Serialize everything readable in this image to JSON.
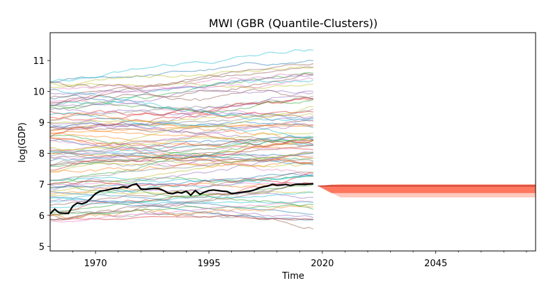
{
  "chart_data": {
    "type": "line",
    "title": "MWI (GBR (Quantile-Clusters))",
    "xlabel": "Time",
    "ylabel": "log(GDP)",
    "xlim": [
      1960,
      2067
    ],
    "ylim": [
      4.85,
      11.9
    ],
    "x_ticks": [
      {
        "value": 1970,
        "label": "1970"
      },
      {
        "value": 1995,
        "label": "1995"
      },
      {
        "value": 2020,
        "label": "2020"
      },
      {
        "value": 2045,
        "label": "2045"
      }
    ],
    "y_ticks": [
      {
        "value": 5,
        "label": "5"
      },
      {
        "value": 6,
        "label": "6"
      },
      {
        "value": 7,
        "label": "7"
      },
      {
        "value": 8,
        "label": "8"
      },
      {
        "value": 9,
        "label": "9"
      },
      {
        "value": 10,
        "label": "10"
      },
      {
        "value": 11,
        "label": "11"
      }
    ],
    "grid": false,
    "legend": "none",
    "background_series": {
      "count": 90,
      "x_start": 1960,
      "x_end": 2018,
      "description_note": "",
      "alpha": 0.5,
      "palette": [
        "#1f77b4",
        "#ff7f0e",
        "#2ca02c",
        "#d62728",
        "#9467bd",
        "#8c564b",
        "#e377c2",
        "#7f7f7f",
        "#bcbd22",
        "#17becf"
      ]
    },
    "highlight_series": {
      "color": "#000000",
      "x": [
        1960,
        1961,
        1962,
        1963,
        1964,
        1965,
        1966,
        1967,
        1968,
        1969,
        1970,
        1971,
        1972,
        1973,
        1974,
        1975,
        1976,
        1977,
        1978,
        1979,
        1980,
        1981,
        1982,
        1983,
        1984,
        1985,
        1986,
        1987,
        1988,
        1989,
        1990,
        1991,
        1992,
        1993,
        1994,
        1995,
        1996,
        1997,
        1998,
        1999,
        2000,
        2001,
        2002,
        2003,
        2004,
        2005,
        2006,
        2007,
        2008,
        2009,
        2010,
        2011,
        2012,
        2013,
        2014,
        2015,
        2016,
        2017,
        2018
      ],
      "y": [
        6.05,
        6.2,
        6.08,
        6.07,
        6.06,
        6.3,
        6.4,
        6.37,
        6.42,
        6.55,
        6.7,
        6.78,
        6.8,
        6.83,
        6.87,
        6.88,
        6.92,
        6.9,
        6.98,
        7.02,
        6.85,
        6.84,
        6.86,
        6.87,
        6.86,
        6.8,
        6.72,
        6.7,
        6.75,
        6.72,
        6.78,
        6.65,
        6.8,
        6.68,
        6.75,
        6.8,
        6.82,
        6.8,
        6.78,
        6.77,
        6.7,
        6.72,
        6.74,
        6.76,
        6.78,
        6.82,
        6.88,
        6.92,
        6.95,
        7.0,
        6.97,
        6.98,
        7.0,
        6.96,
        7.0,
        7.01,
        7.0,
        7.01,
        7.02
      ]
    },
    "forecast": {
      "x_start": 2019,
      "x_end": 2067,
      "median": 6.95,
      "band_color": "#ff6347",
      "inner_band": {
        "upper": 6.99,
        "lower": 6.72
      },
      "outer_band": {
        "upper": 7.01,
        "lower": 6.58
      }
    }
  }
}
